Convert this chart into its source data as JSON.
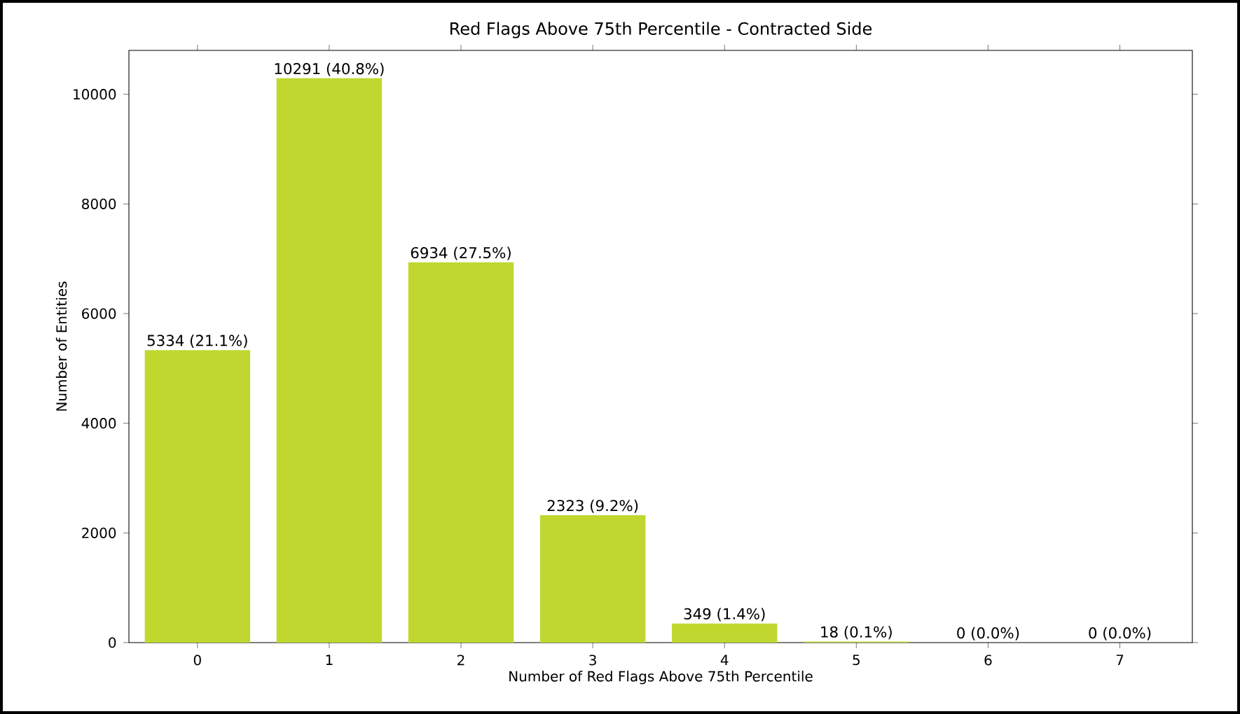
{
  "chart_data": {
    "type": "bar",
    "title": "Red Flags Above 75th Percentile - Contracted Side",
    "xlabel": "Number of Red Flags Above 75th Percentile",
    "ylabel": "Number of Entities",
    "categories": [
      "0",
      "1",
      "2",
      "3",
      "4",
      "5",
      "6",
      "7"
    ],
    "values": [
      5334,
      10291,
      6934,
      2323,
      349,
      18,
      0,
      0
    ],
    "value_labels": [
      "5334 (21.1%)",
      "10291 (40.8%)",
      "6934 (27.5%)",
      "2323 (9.2%)",
      "349 (1.4%)",
      "18 (0.1%)",
      "0 (0.0%)",
      "0 (0.0%)"
    ],
    "color": "#c0d72f",
    "ylim": [
      0,
      10800
    ],
    "yticks": [
      0,
      2000,
      4000,
      6000,
      8000,
      10000
    ]
  }
}
